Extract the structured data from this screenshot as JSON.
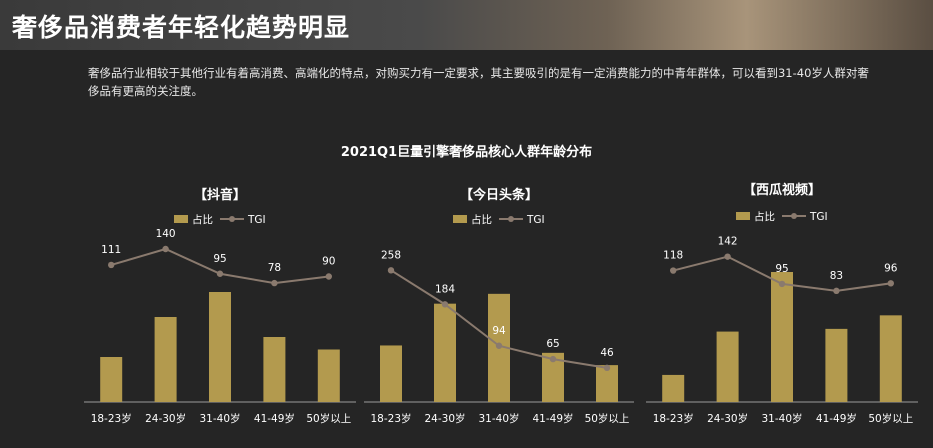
{
  "header": {
    "title": "奢侈品消费者年轻化趋势明显"
  },
  "intro": {
    "text": "奢侈品行业相较于其他行业有着高消费、高端化的特点，对购买力有一定要求，其主要吸引的是有一定消费能力的中青年群体，可以看到31-40岁人群对奢侈品有更高的关注度。"
  },
  "main_title": "2021Q1巨量引擎奢侈品核心人群年龄分布",
  "colors": {
    "bar": "#b39a4e",
    "line": "#8a7a6e",
    "axis": "#9a9a9a"
  },
  "chart_data": [
    {
      "type": "bar",
      "title": "【抖音】",
      "categories": [
        "18-23岁",
        "24-30岁",
        "31-40岁",
        "41-49岁",
        "50岁以上"
      ],
      "series": [
        {
          "name": "占比",
          "type": "bar",
          "values": [
            9,
            17,
            22,
            13,
            10.5
          ]
        },
        {
          "name": "TGI",
          "type": "line",
          "values": [
            111,
            140,
            95,
            78,
            90
          ]
        }
      ],
      "legend": "top-center"
    },
    {
      "type": "bar",
      "title": "【今日头条】",
      "categories": [
        "18-23岁",
        "24-30岁",
        "31-40岁",
        "41-49岁",
        "50岁以上"
      ],
      "series": [
        {
          "name": "占比",
          "type": "bar",
          "values": [
            11.5,
            20,
            22,
            10,
            7.5
          ]
        },
        {
          "name": "TGI",
          "type": "line",
          "values": [
            258,
            184,
            94,
            65,
            46
          ]
        }
      ],
      "legend": "top-center"
    },
    {
      "type": "bar",
      "title": "【西瓜视频】",
      "categories": [
        "18-23岁",
        "24-30岁",
        "31-40岁",
        "41-49岁",
        "50岁以上"
      ],
      "series": [
        {
          "name": "占比",
          "type": "bar",
          "values": [
            5,
            13,
            24,
            13.5,
            16
          ]
        },
        {
          "name": "TGI",
          "type": "line",
          "values": [
            118,
            142,
            95,
            83,
            96
          ]
        }
      ],
      "legend": "top-center"
    }
  ]
}
